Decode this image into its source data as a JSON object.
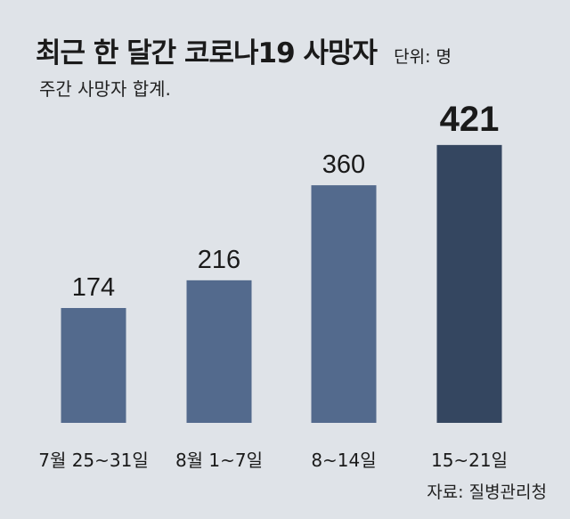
{
  "header": {
    "title": "최근 한 달간 코로나19 사망자",
    "unit": "단위: 명",
    "subtitle": "주간 사망자 합계."
  },
  "source": "자료: 질병관리청",
  "chart_data": {
    "type": "bar",
    "title": "최근 한 달간 코로나19 사망자",
    "subtitle": "주간 사망자 합계.",
    "unit": "명",
    "categories": [
      "7월 25~31일",
      "8월 1~7일",
      "8~14일",
      "15~21일"
    ],
    "values": [
      174,
      216,
      360,
      421
    ],
    "value_labels": [
      "174",
      "216",
      "360",
      "421"
    ],
    "highlight_index": 3,
    "ylim": [
      0,
      421
    ],
    "grid": false,
    "legend": "none",
    "colors": {
      "bar": "#536a8d",
      "highlight": "#344660",
      "background": "#dfe3e8"
    }
  }
}
